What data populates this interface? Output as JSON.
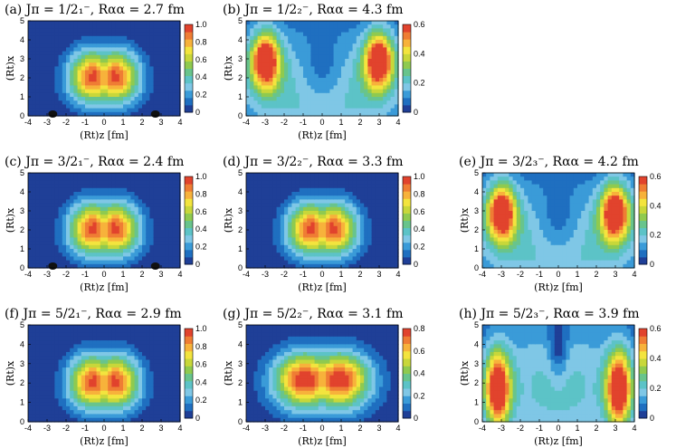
{
  "colors": {
    "scale": [
      "#1f3f97",
      "#1f6fc0",
      "#3a9bd8",
      "#7fc7e6",
      "#5cc3c7",
      "#68c48c",
      "#8fca4f",
      "#c8d73a",
      "#f3e43e",
      "#f7b23b",
      "#ef7d34",
      "#e1432d"
    ],
    "contour_line": "#3c3c3c",
    "bump": "#111111"
  },
  "chart_data": [
    {
      "type": "heatmap",
      "panel_label": "(a)",
      "title_tex": "J^π = 1/2₁⁻",
      "title": "(a) Jπ = 1/2₁⁻,   Rαα = 2.7 fm",
      "xlabel": "(Rt)z [fm]",
      "ylabel": "(Rt)x",
      "xlim": [
        -4,
        4
      ],
      "ylim": [
        0,
        5
      ],
      "xticks": [
        "-4",
        "-3",
        "-2",
        "-1",
        "0",
        "1",
        "2",
        "3",
        "4"
      ],
      "yticks": [
        "0",
        "1",
        "2",
        "3",
        "4",
        "5"
      ],
      "colorbar": {
        "range": [
          0,
          1.0
        ],
        "ticks": [
          "0",
          "0.2",
          "0.4",
          "0.6",
          "0.8",
          "1.0"
        ]
      },
      "pattern": "central",
      "peak": 0.95,
      "bumps": true
    },
    {
      "type": "heatmap",
      "panel_label": "(b)",
      "title": "(b) Jπ = 1/2₂⁻,   Rαα = 4.3 fm",
      "xlabel": "(Rt)z [fm]",
      "ylabel": "(Rt)x",
      "xlim": [
        -4,
        4
      ],
      "ylim": [
        0,
        5
      ],
      "xticks": [
        "-4",
        "-3",
        "-2",
        "-1",
        "0",
        "1",
        "2",
        "3",
        "4"
      ],
      "yticks": [
        "0",
        "1",
        "2",
        "3",
        "4",
        "5"
      ],
      "colorbar": {
        "range": [
          0,
          0.6
        ],
        "ticks": [
          "0",
          "0.2",
          "0.4",
          "0.6"
        ]
      },
      "pattern": "lobes",
      "peak": 0.6,
      "bumps": false
    },
    {
      "type": "heatmap",
      "panel_label": "(c)",
      "title": "(c) Jπ = 3/2₁⁻,   Rαα = 2.4 fm",
      "xlabel": "(Rt)z [fm]",
      "ylabel": "(Rt)x",
      "xlim": [
        -4,
        4
      ],
      "ylim": [
        0,
        5
      ],
      "xticks": [
        "-4",
        "-3",
        "-2",
        "-1",
        "0",
        "1",
        "2",
        "3",
        "4"
      ],
      "yticks": [
        "0",
        "1",
        "2",
        "3",
        "4",
        "5"
      ],
      "colorbar": {
        "range": [
          0,
          1.0
        ],
        "ticks": [
          "0",
          "0.2",
          "0.4",
          "0.6",
          "0.8",
          "1.0"
        ]
      },
      "pattern": "central",
      "peak": 0.95,
      "bumps": true
    },
    {
      "type": "heatmap",
      "panel_label": "(d)",
      "title": "(d) Jπ = 3/2₂⁻,   Rαα = 3.3 fm",
      "xlabel": "(Rt)z [fm]",
      "ylabel": "(Rt)x",
      "xlim": [
        -4,
        4
      ],
      "ylim": [
        0,
        5
      ],
      "xticks": [
        "-4",
        "-3",
        "-2",
        "-1",
        "0",
        "1",
        "2",
        "3",
        "4"
      ],
      "yticks": [
        "0",
        "1",
        "2",
        "3",
        "4",
        "5"
      ],
      "colorbar": {
        "range": [
          0,
          1.0
        ],
        "ticks": [
          "0",
          "0.2",
          "0.4",
          "0.6",
          "0.8",
          "1.0"
        ]
      },
      "pattern": "central",
      "peak": 0.82,
      "bumps": false
    },
    {
      "type": "heatmap",
      "panel_label": "(e)",
      "title": "(e) Jπ = 3/2₃⁻,   Rαα = 4.2 fm",
      "xlabel": "(Rt)z [fm]",
      "ylabel": "(Rt)x",
      "xlim": [
        -4,
        4
      ],
      "ylim": [
        0,
        5
      ],
      "xticks": [
        "-4",
        "-3",
        "-2",
        "-1",
        "0",
        "1",
        "2",
        "3",
        "4"
      ],
      "yticks": [
        "0",
        "1",
        "2",
        "3",
        "4",
        "5"
      ],
      "colorbar": {
        "range": [
          0,
          0.6
        ],
        "ticks": [
          "0",
          "0.2",
          "0.4",
          "0.6"
        ]
      },
      "pattern": "lobes",
      "peak": 0.6,
      "bumps": false
    },
    {
      "type": "heatmap",
      "panel_label": "(f)",
      "title": "(f) Jπ = 5/2₁⁻,   Rαα = 2.9 fm",
      "xlabel": "(Rt)z [fm]",
      "ylabel": "(Rt)x",
      "xlim": [
        -4,
        4
      ],
      "ylim": [
        0,
        5
      ],
      "xticks": [
        "-4",
        "-3",
        "-2",
        "-1",
        "0",
        "1",
        "2",
        "3",
        "4"
      ],
      "yticks": [
        "0",
        "1",
        "2",
        "3",
        "4",
        "5"
      ],
      "colorbar": {
        "range": [
          0,
          1.0
        ],
        "ticks": [
          "0",
          "0.2",
          "0.4",
          "0.6",
          "0.8",
          "1.0"
        ]
      },
      "pattern": "central",
      "peak": 0.9,
      "bumps": false
    },
    {
      "type": "heatmap",
      "panel_label": "(g)",
      "title": "(g) Jπ = 5/2₂⁻,   Rαα = 3.1 fm",
      "xlabel": "(Rt)z [fm]",
      "ylabel": "(Rt)x",
      "xlim": [
        -4,
        4
      ],
      "ylim": [
        0,
        5
      ],
      "xticks": [
        "-4",
        "-3",
        "-2",
        "-1",
        "0",
        "1",
        "2",
        "3",
        "4"
      ],
      "yticks": [
        "0",
        "1",
        "2",
        "3",
        "4",
        "5"
      ],
      "colorbar": {
        "range": [
          0,
          0.8
        ],
        "ticks": [
          "0",
          "0.2",
          "0.4",
          "0.6",
          "0.8"
        ]
      },
      "pattern": "wide",
      "peak": 0.8,
      "bumps": false
    },
    {
      "type": "heatmap",
      "panel_label": "(h)",
      "title": "(h) Jπ = 5/2₃⁻,   Rαα = 3.9 fm",
      "xlabel": "(Rt)z [fm]",
      "ylabel": "(Rt)x",
      "xlim": [
        -4,
        4
      ],
      "ylim": [
        0,
        5
      ],
      "xticks": [
        "-4",
        "-3",
        "-2",
        "-1",
        "0",
        "1",
        "2",
        "3",
        "4"
      ],
      "yticks": [
        "0",
        "1",
        "2",
        "3",
        "4",
        "5"
      ],
      "colorbar": {
        "range": [
          0,
          0.6
        ],
        "ticks": [
          "0",
          "0.2",
          "0.4",
          "0.6"
        ]
      },
      "pattern": "edges",
      "peak": 0.6,
      "bumps": false
    }
  ]
}
